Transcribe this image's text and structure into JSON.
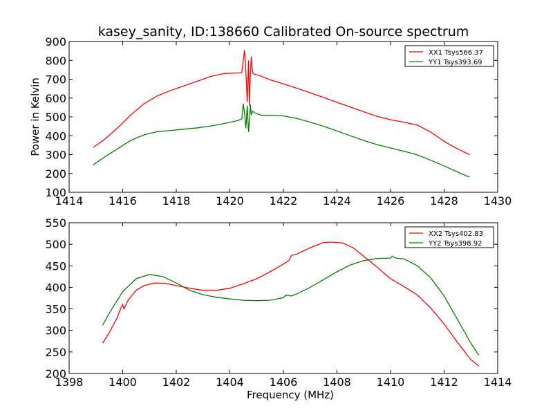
{
  "title": "kasey_sanity, ID:138660 Calibrated On-source spectrum",
  "chart_data": [
    {
      "type": "line",
      "xlabel": "",
      "ylabel": "Power in Kelvin",
      "xlim": [
        1414,
        1430
      ],
      "ylim": [
        100,
        900
      ],
      "xticks": [
        1414,
        1416,
        1418,
        1420,
        1422,
        1424,
        1426,
        1428,
        1430
      ],
      "yticks": [
        100,
        200,
        300,
        400,
        500,
        600,
        700,
        800,
        900
      ],
      "legend": "top-right",
      "series": [
        {
          "name": "XX1 Tsys566.37",
          "color": "#ff0000",
          "x": [
            1414.9,
            1415.3,
            1415.8,
            1416.3,
            1416.8,
            1417.3,
            1417.8,
            1418.3,
            1418.8,
            1419.3,
            1419.8,
            1420.3,
            1420.45,
            1420.5,
            1420.55,
            1420.6,
            1420.65,
            1420.7,
            1420.73,
            1420.76,
            1420.8,
            1420.83,
            1420.87,
            1420.95,
            1421.1,
            1421.5,
            1422.0,
            1422.5,
            1423.0,
            1423.5,
            1424.0,
            1424.5,
            1425.0,
            1425.5,
            1426.0,
            1426.5,
            1427.0,
            1427.5,
            1428.0,
            1428.5,
            1428.95
          ],
          "y": [
            338,
            378,
            440,
            510,
            570,
            612,
            640,
            665,
            690,
            715,
            730,
            733,
            735,
            800,
            855,
            740,
            580,
            800,
            560,
            700,
            820,
            760,
            730,
            725,
            720,
            697,
            675,
            652,
            628,
            603,
            577,
            552,
            527,
            503,
            485,
            472,
            456,
            420,
            370,
            330,
            300
          ]
        },
        {
          "name": "YY1 Tsys393.69",
          "color": "#008000",
          "x": [
            1414.9,
            1415.3,
            1415.8,
            1416.3,
            1416.8,
            1417.3,
            1417.8,
            1418.3,
            1418.8,
            1419.3,
            1419.8,
            1420.3,
            1420.45,
            1420.5,
            1420.55,
            1420.6,
            1420.65,
            1420.7,
            1420.73,
            1420.77,
            1420.8,
            1420.85,
            1420.95,
            1421.2,
            1421.5,
            1422.0,
            1422.5,
            1423.0,
            1423.5,
            1424.0,
            1424.5,
            1425.0,
            1425.5,
            1426.0,
            1426.5,
            1427.0,
            1427.5,
            1428.0,
            1428.5,
            1428.95
          ],
          "y": [
            246,
            285,
            330,
            375,
            405,
            422,
            428,
            435,
            442,
            452,
            465,
            480,
            490,
            570,
            520,
            440,
            560,
            420,
            480,
            565,
            510,
            530,
            520,
            508,
            508,
            505,
            492,
            472,
            450,
            425,
            400,
            375,
            353,
            335,
            318,
            298,
            270,
            240,
            208,
            180
          ]
        }
      ]
    },
    {
      "type": "line",
      "xlabel": "Frequency (MHz)",
      "ylabel": "",
      "xlim": [
        1398,
        1414
      ],
      "ylim": [
        200,
        550
      ],
      "xticks": [
        1398,
        1400,
        1402,
        1404,
        1406,
        1408,
        1410,
        1412,
        1414
      ],
      "yticks": [
        200,
        250,
        300,
        350,
        400,
        450,
        500,
        550
      ],
      "legend": "top-right",
      "series": [
        {
          "name": "XX2 Tsys402.83",
          "color": "#ff0000",
          "x": [
            1399.25,
            1399.5,
            1399.8,
            1399.95,
            1400.0,
            1400.05,
            1400.2,
            1400.5,
            1400.8,
            1401.2,
            1401.6,
            1402.0,
            1402.5,
            1403.0,
            1403.5,
            1404.0,
            1404.5,
            1405.0,
            1405.5,
            1406.0,
            1406.2,
            1406.3,
            1406.5,
            1407.0,
            1407.5,
            1407.8,
            1408.2,
            1408.6,
            1409.0,
            1409.5,
            1410.0,
            1410.5,
            1411.0,
            1411.5,
            1412.0,
            1412.5,
            1413.0,
            1413.3
          ],
          "y": [
            270,
            295,
            330,
            355,
            360,
            350,
            370,
            393,
            404,
            410,
            409,
            404,
            398,
            393,
            393,
            398,
            408,
            420,
            436,
            454,
            462,
            474,
            477,
            492,
            504,
            505,
            503,
            492,
            472,
            447,
            420,
            402,
            382,
            352,
            315,
            272,
            232,
            217
          ]
        },
        {
          "name": "YY2 Tsys398.92",
          "color": "#008000",
          "x": [
            1399.25,
            1399.5,
            1400.0,
            1400.5,
            1401.0,
            1401.5,
            1402.0,
            1402.5,
            1403.0,
            1403.5,
            1404.0,
            1404.5,
            1405.0,
            1405.5,
            1406.0,
            1406.1,
            1406.3,
            1406.5,
            1407.0,
            1407.5,
            1408.0,
            1408.5,
            1409.0,
            1409.5,
            1410.0,
            1410.05,
            1410.2,
            1410.5,
            1411.0,
            1411.5,
            1412.0,
            1412.5,
            1413.0,
            1413.3
          ],
          "y": [
            312,
            340,
            390,
            420,
            430,
            425,
            410,
            393,
            383,
            377,
            373,
            370,
            369,
            370,
            376,
            382,
            380,
            385,
            400,
            418,
            436,
            452,
            462,
            467,
            468,
            472,
            468,
            466,
            450,
            422,
            380,
            325,
            270,
            242
          ]
        }
      ]
    }
  ]
}
